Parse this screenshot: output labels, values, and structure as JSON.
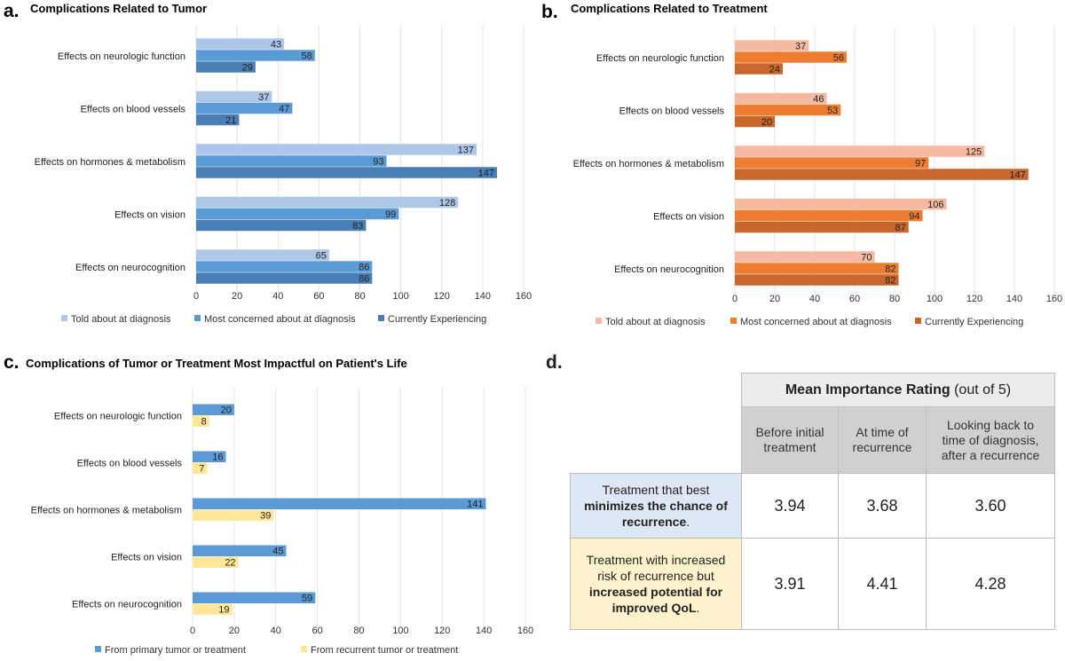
{
  "panels": [
    {
      "label": "a.",
      "title": "Complications Related to Tumor",
      "chart_data": {
        "type": "bar",
        "orientation": "horizontal",
        "categories": [
          "Effects on neurologic function",
          "Effects on blood vessels",
          "Effects on hormones & metabolism",
          "Effects on vision",
          "Effects on neurocognition"
        ],
        "series": [
          {
            "name": "Told about at diagnosis",
            "values": [
              43,
              37,
              137,
              128,
              65
            ],
            "color": "#aec7e8"
          },
          {
            "name": "Most concerned about at diagnosis",
            "values": [
              58,
              47,
              93,
              99,
              86
            ],
            "color": "#5b9bd5"
          },
          {
            "name": "Currently Experiencing",
            "values": [
              29,
              21,
              147,
              83,
              86
            ],
            "color": "#4a7fb5"
          }
        ],
        "xlim": [
          0,
          160
        ],
        "ticks": [
          0,
          20,
          40,
          60,
          80,
          100,
          120,
          140,
          160
        ],
        "grid": true,
        "legend": "bottom"
      }
    },
    {
      "label": "b.",
      "title": "Complications Related to Treatment",
      "chart_data": {
        "type": "bar",
        "orientation": "horizontal",
        "categories": [
          "Effects on neurologic function",
          "Effects on blood vessels",
          "Effects on hormones & metabolism",
          "Effects on vision",
          "Effects on neurocognition"
        ],
        "series": [
          {
            "name": "Told about at diagnosis",
            "values": [
              37,
              46,
              125,
              106,
              70
            ],
            "color": "#f4b9a0"
          },
          {
            "name": "Most concerned about at diagnosis",
            "values": [
              56,
              53,
              97,
              94,
              82
            ],
            "color": "#ed7d31"
          },
          {
            "name": "Currently Experiencing",
            "values": [
              24,
              20,
              147,
              87,
              82
            ],
            "color": "#c8662c"
          }
        ],
        "xlim": [
          0,
          160
        ],
        "ticks": [
          0,
          20,
          40,
          60,
          80,
          100,
          120,
          140,
          160
        ],
        "grid": true,
        "legend": "bottom"
      }
    },
    {
      "label": "c.",
      "title": "Complications of Tumor or Treatment Most Impactful on Patient's Life",
      "chart_data": {
        "type": "bar",
        "orientation": "horizontal",
        "categories": [
          "Effects on neurologic function",
          "Effects on blood vessels",
          "Effects on hormones & metabolism",
          "Effects on vision",
          "Effects on neurocognition"
        ],
        "series": [
          {
            "name": "From primary tumor or treatment",
            "values": [
              20,
              16,
              141,
              45,
              59
            ],
            "color": "#5b9bd5"
          },
          {
            "name": "From recurrent tumor or treatment",
            "values": [
              8,
              7,
              39,
              22,
              19
            ],
            "color": "#ffe699"
          }
        ],
        "xlim": [
          0,
          160
        ],
        "ticks": [
          0,
          20,
          40,
          60,
          80,
          100,
          120,
          140,
          160
        ],
        "grid": true,
        "legend": "bottom"
      }
    }
  ],
  "table": {
    "label": "d.",
    "header_bold": "Mean Importance Rating",
    "header_rest": " (out of 5)",
    "columns": [
      "Before initial treatment",
      "At time of recurrence",
      "Looking back to time of diagnosis, after a recurrence"
    ],
    "rows": [
      {
        "pre": "Treatment that best ",
        "bold": "minimizes the chance of recurrence",
        "post": ".",
        "values": [
          "3.94",
          "3.68",
          "3.60"
        ],
        "color": "#dde8f4"
      },
      {
        "pre": "Treatment with increased risk of recurrence but ",
        "bold": "increased potential for improved QoL",
        "post": ".",
        "values": [
          "3.91",
          "4.41",
          "4.28"
        ],
        "color": "#fdf2cc"
      }
    ]
  }
}
